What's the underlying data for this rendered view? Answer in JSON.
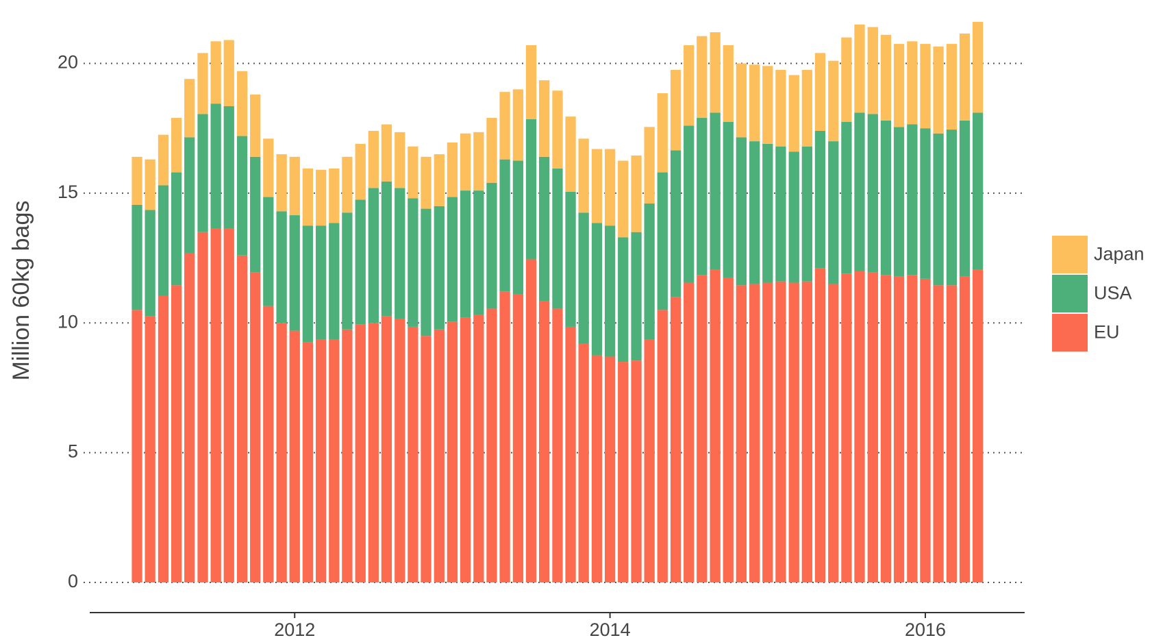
{
  "chart_data": {
    "type": "stacked_bar",
    "y_label": "Million 60kg bags",
    "x": [
      2011.0,
      2011.083,
      2011.167,
      2011.25,
      2011.333,
      2011.417,
      2011.5,
      2011.583,
      2011.667,
      2011.75,
      2011.833,
      2011.917,
      2012.0,
      2012.083,
      2012.167,
      2012.25,
      2012.333,
      2012.417,
      2012.5,
      2012.583,
      2012.667,
      2012.75,
      2012.833,
      2012.917,
      2013.0,
      2013.083,
      2013.167,
      2013.25,
      2013.333,
      2013.417,
      2013.5,
      2013.583,
      2013.667,
      2013.75,
      2013.833,
      2013.917,
      2014.0,
      2014.083,
      2014.167,
      2014.25,
      2014.333,
      2014.417,
      2014.5,
      2014.583,
      2014.667,
      2014.75,
      2014.833,
      2014.917,
      2015.0,
      2015.083,
      2015.167,
      2015.25,
      2015.333,
      2015.417,
      2015.5,
      2015.583,
      2015.667,
      2015.75,
      2015.833,
      2015.917,
      2016.0,
      2016.083,
      2016.167,
      2016.25,
      2016.333
    ],
    "series": [
      {
        "name": "EU",
        "color": "#fc6a50",
        "values": [
          10.5,
          10.25,
          11.05,
          11.45,
          12.7,
          13.5,
          13.65,
          13.65,
          12.6,
          11.95,
          10.65,
          10.0,
          9.7,
          9.25,
          9.35,
          9.35,
          9.75,
          9.95,
          10.0,
          10.25,
          10.15,
          9.85,
          9.5,
          9.75,
          10.05,
          10.2,
          10.3,
          10.55,
          11.2,
          11.1,
          12.45,
          10.85,
          10.55,
          9.85,
          9.2,
          8.75,
          8.7,
          8.5,
          8.55,
          9.35,
          10.5,
          11.0,
          11.55,
          11.85,
          12.05,
          11.75,
          11.45,
          11.5,
          11.55,
          11.6,
          11.55,
          11.6,
          12.1,
          11.5,
          11.9,
          12.0,
          11.95,
          11.85,
          11.8,
          11.85,
          11.7,
          11.45,
          11.45,
          11.8,
          12.05
        ]
      },
      {
        "name": "USA",
        "color": "#4daf7a",
        "values": [
          4.05,
          4.1,
          4.25,
          4.35,
          4.45,
          4.55,
          4.8,
          4.7,
          4.6,
          4.45,
          4.2,
          4.3,
          4.45,
          4.5,
          4.4,
          4.5,
          4.5,
          4.8,
          5.2,
          5.2,
          5.05,
          4.95,
          4.9,
          4.75,
          4.8,
          4.9,
          4.8,
          4.85,
          5.1,
          5.15,
          5.4,
          5.55,
          5.4,
          5.2,
          5.05,
          5.1,
          5.05,
          4.8,
          4.95,
          5.25,
          5.3,
          5.65,
          6.05,
          6.05,
          6.05,
          6.0,
          5.7,
          5.5,
          5.35,
          5.2,
          5.05,
          5.2,
          5.3,
          5.5,
          5.85,
          6.1,
          6.1,
          5.95,
          5.75,
          5.8,
          5.8,
          5.85,
          6.0,
          6.0,
          6.05
        ]
      },
      {
        "name": "Japan",
        "color": "#fdbf5c",
        "values": [
          1.85,
          1.95,
          1.95,
          2.1,
          2.25,
          2.35,
          2.4,
          2.55,
          2.5,
          2.4,
          2.25,
          2.2,
          2.25,
          2.2,
          2.15,
          2.1,
          2.15,
          2.15,
          2.2,
          2.2,
          2.15,
          2.0,
          2.0,
          2.0,
          2.1,
          2.2,
          2.25,
          2.5,
          2.6,
          2.75,
          2.85,
          2.95,
          3.0,
          2.9,
          2.85,
          2.85,
          2.95,
          2.95,
          2.95,
          2.95,
          3.05,
          3.1,
          3.1,
          3.15,
          3.1,
          2.95,
          2.85,
          2.95,
          3.0,
          2.95,
          2.95,
          2.95,
          3.0,
          3.1,
          3.25,
          3.4,
          3.35,
          3.3,
          3.2,
          3.2,
          3.25,
          3.35,
          3.3,
          3.35,
          3.5
        ]
      }
    ],
    "xlim": [
      2010.7,
      2016.63
    ],
    "xticks": [
      2012,
      2014,
      2016
    ],
    "ylim": [
      0,
      21.65
    ],
    "yticks": [
      0,
      5,
      10,
      15,
      20
    ],
    "grid": true,
    "legend": "right"
  }
}
